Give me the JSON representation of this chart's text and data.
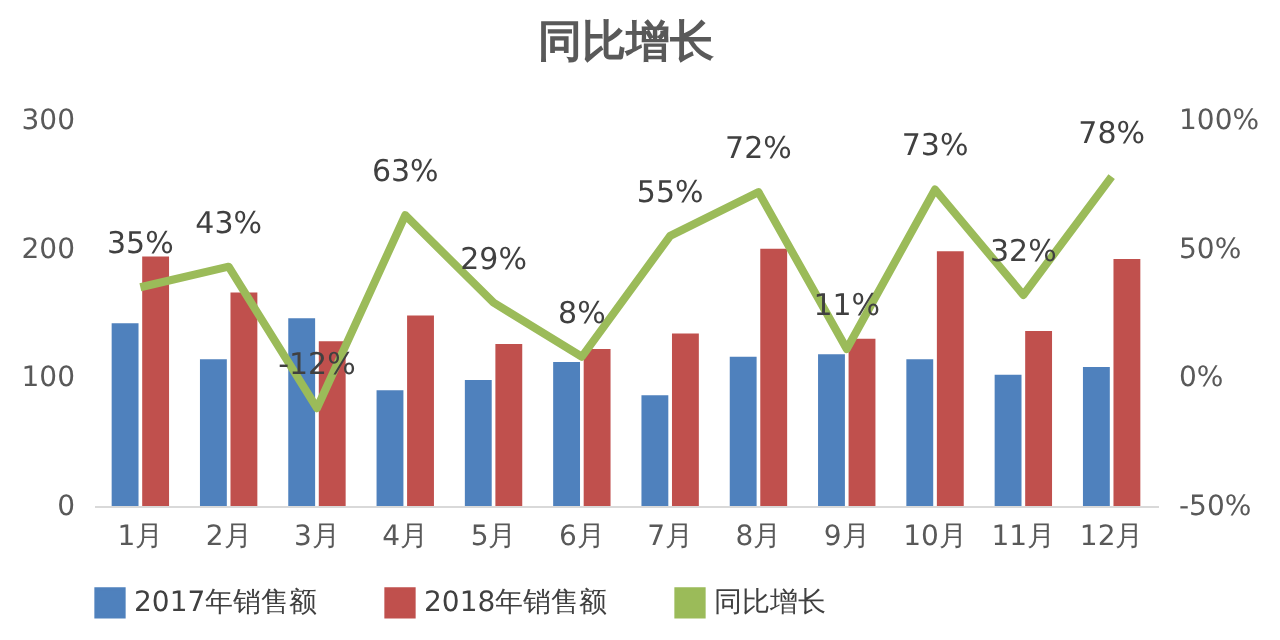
{
  "chart_data": {
    "type": "bar",
    "title": "同比增长",
    "categories": [
      "1月",
      "2月",
      "3月",
      "4月",
      "5月",
      "6月",
      "7月",
      "8月",
      "9月",
      "10月",
      "11月",
      "12月"
    ],
    "series": [
      {
        "name": "2017年销售额",
        "color": "#4f81bd",
        "values": [
          142,
          114,
          146,
          90,
          98,
          112,
          86,
          116,
          118,
          114,
          102,
          108
        ]
      },
      {
        "name": "2018年销售额",
        "color": "#c0504d",
        "values": [
          194,
          166,
          128,
          148,
          126,
          122,
          134,
          200,
          130,
          198,
          136,
          192
        ]
      },
      {
        "name": "同比增长",
        "type": "line",
        "axis": "y2",
        "color": "#9bbb59",
        "values": [
          35,
          43,
          -12,
          63,
          29,
          8,
          55,
          72,
          11,
          73,
          32,
          78
        ],
        "value_labels": [
          "35%",
          "43%",
          "-12%",
          "63%",
          "29%",
          "8%",
          "55%",
          "72%",
          "11%",
          "73%",
          "32%",
          "78%"
        ]
      }
    ],
    "ylim": [
      0,
      300
    ],
    "yticks": [
      0,
      100,
      200,
      300
    ],
    "y2lim": [
      -50,
      100
    ],
    "y2ticks": [
      {
        "value": -50,
        "label": "-50%"
      },
      {
        "value": 0,
        "label": "0%"
      },
      {
        "value": 50,
        "label": "50%"
      },
      {
        "value": 100,
        "label": "100%"
      }
    ],
    "grid": false,
    "legend": "bottom",
    "marker": "none"
  }
}
